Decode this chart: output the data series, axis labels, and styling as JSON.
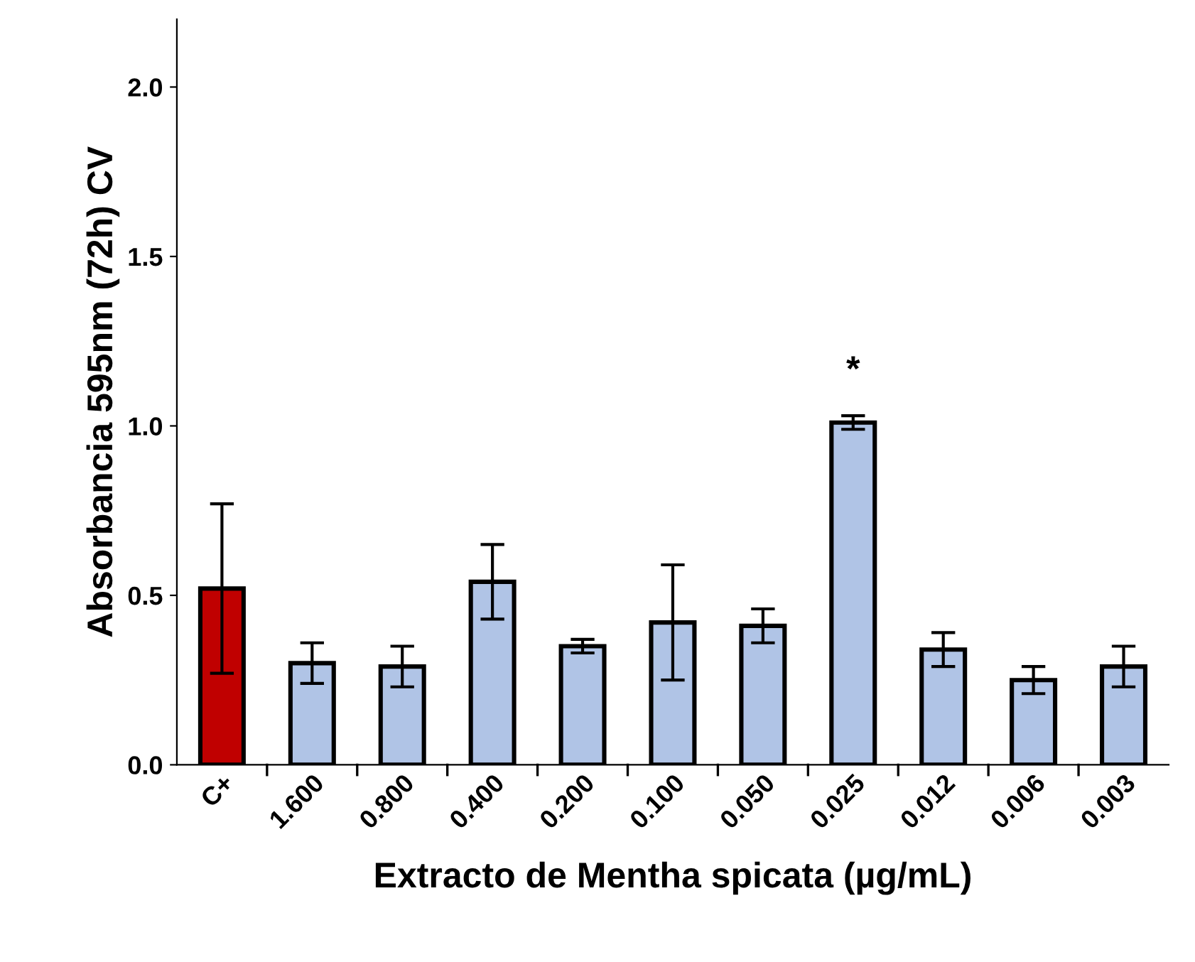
{
  "chart_data": {
    "type": "bar",
    "xlabel": "Extracto de Mentha spicata (µg/mL)",
    "ylabel": "Absorbancia 595nm (72h) CV",
    "categories": [
      "C+",
      "1.600",
      "0.800",
      "0.400",
      "0.200",
      "0.100",
      "0.050",
      "0.025",
      "0.012",
      "0.006",
      "0.003"
    ],
    "values": [
      0.52,
      0.3,
      0.29,
      0.54,
      0.35,
      0.42,
      0.41,
      1.01,
      0.34,
      0.25,
      0.29
    ],
    "errors": [
      0.25,
      0.06,
      0.06,
      0.11,
      0.02,
      0.17,
      0.05,
      0.02,
      0.05,
      0.04,
      0.06
    ],
    "colors": [
      "#c00000",
      "#b0c4e6",
      "#b0c4e6",
      "#b0c4e6",
      "#b0c4e6",
      "#b0c4e6",
      "#b0c4e6",
      "#b0c4e6",
      "#b0c4e6",
      "#b0c4e6",
      "#b0c4e6"
    ],
    "annotations": [
      "*"
    ],
    "ylim": [
      0,
      2.2
    ],
    "yticks": [
      {
        "value": 0,
        "label": "0.0"
      },
      {
        "value": 0.5,
        "label": "0.5"
      },
      {
        "value": 1.0,
        "label": "1.0"
      },
      {
        "value": 1.5,
        "label": "1.5"
      },
      {
        "value": 2.0,
        "label": "2.0"
      }
    ],
    "grid": false
  }
}
